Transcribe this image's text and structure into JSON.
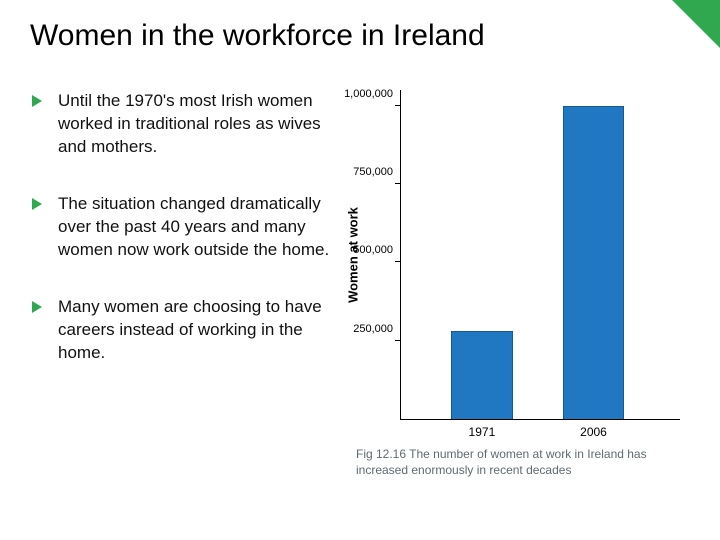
{
  "accent_color": "#2fa84f",
  "title": "Women in the workforce in Ireland",
  "bullets": [
    "Until the 1970's most Irish women worked in traditional roles as wives and mothers.",
    "The situation changed dramatically over the past 40 years and many women now work outside the home.",
    "Many women are choosing to have careers instead of working in the home."
  ],
  "chart": {
    "type": "bar",
    "ylabel": "Women at work",
    "ylim_max": 1050000,
    "yticks": [
      {
        "value": 250000,
        "label": "250,000"
      },
      {
        "value": 500000,
        "label": "500,000"
      },
      {
        "value": 750000,
        "label": "750,000"
      },
      {
        "value": 1000000,
        "label": "1,000,000"
      }
    ],
    "categories": [
      "1971",
      "2006"
    ],
    "values": [
      280000,
      1000000
    ],
    "bar_color": "#1f78c1",
    "bar_border": "#15598f",
    "axis_color": "#000000",
    "label_fontsize": 13,
    "tick_fontsize": 11
  },
  "caption": "Fig 12.16 The number of women at work in Ireland has increased enormously in recent decades"
}
